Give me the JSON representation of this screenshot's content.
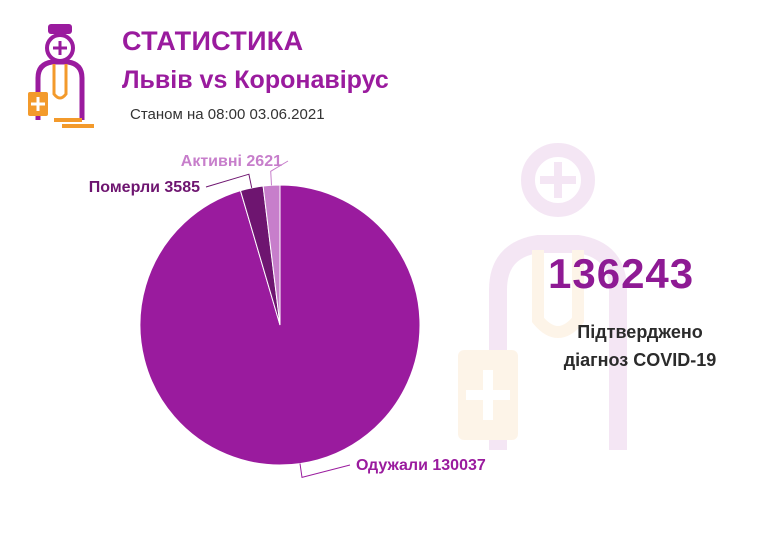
{
  "header": {
    "title": "СТАТИСТИКА",
    "subtitle": "Львів vs Коронавірус",
    "date": "Станом на 08:00 03.06.2021"
  },
  "summary": {
    "total": "136243",
    "label_line1": "Підтверджено",
    "label_line2": "діагноз COVID-19"
  },
  "colors": {
    "recovered": "#9a1b9e",
    "died": "#6e1570",
    "active": "#c77ecb",
    "title": "#9a1b9e",
    "subtitle": "#9a1b9e",
    "total": "#8e1a94",
    "logo_accent": "#f39a2b"
  },
  "chart_data": {
    "type": "pie",
    "slices": [
      {
        "label": "Одужали",
        "value": 130037,
        "text": "Одужали 130037",
        "color": "#9a1b9e"
      },
      {
        "label": "Померли",
        "value": 3585,
        "text": "Померли 3585",
        "color": "#6e1570"
      },
      {
        "label": "Активні",
        "value": 2621,
        "text": "Активні 2621",
        "color": "#c77ecb"
      }
    ]
  }
}
